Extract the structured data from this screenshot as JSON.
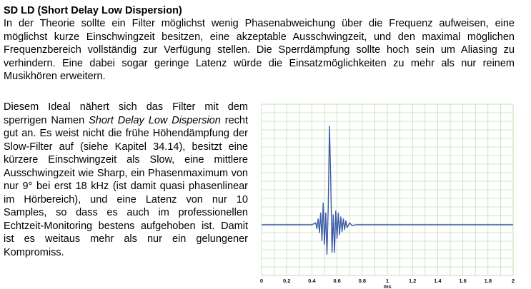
{
  "heading": "SD LD (Short Delay Low Dispersion)",
  "intro": "In der Theorie sollte ein Filter möglichst wenig Phasenabweichung über die Frequenz aufweisen, eine möglichst kurze Einschwingzeit besitzen, eine akzeptable Ausschwingzeit, und den maximal möglichen Frequenzbereich vollständig zur Verfügung stellen. Die Sperrdämpfung sollte hoch sein um Aliasing zu verhindern. Eine dabei sogar geringe Latenz würde die Einsatzmöglichkeiten zu mehr als nur reinem Musikhören erweitern.",
  "body": {
    "p1": "Diesem Ideal nähert sich das Filter mit dem sperrigen Namen ",
    "italic": "Short Delay Low Dispersion",
    "p2": " recht gut an. Es weist nicht die frühe Höhendämpfung der Slow-Filter auf (siehe Kapitel 34.14), besitzt eine kürzere Einschwingzeit als Slow, eine mittlere Ausschwingzeit wie Sharp, ein Phasenmaximum von nur 9° bei erst 18 kHz (ist damit quasi phasenlinear im Hörbereich), und eine Latenz von nur 10 Samples, so dass es auch im professionellen Echtzeit-Monitoring bestens aufgehoben ist. Damit ist es weitaus mehr als nur ein gelungener Kompromiss."
  },
  "chart_data": {
    "type": "line",
    "xlabel": "ms",
    "ylabel": "",
    "xlim": [
      0,
      2
    ],
    "x_ticks": [
      "0",
      "0.2",
      "0.4",
      "0.6",
      "0.8",
      "1",
      "1.2",
      "1.4",
      "1.6",
      "1.8",
      "2"
    ],
    "grid": true,
    "line_color": "#3a5aa8",
    "grid_color": "#bfe0b4",
    "baseline": 0,
    "series": [
      {
        "points": [
          [
            0,
            0
          ],
          [
            0.4,
            0
          ],
          [
            0.43,
            0.02
          ],
          [
            0.44,
            -0.04
          ],
          [
            0.45,
            0.06
          ],
          [
            0.46,
            -0.08
          ],
          [
            0.47,
            0.12
          ],
          [
            0.48,
            -0.16
          ],
          [
            0.49,
            0.22
          ],
          [
            0.5,
            -0.2
          ],
          [
            0.51,
            0.12
          ],
          [
            0.52,
            -0.3
          ],
          [
            0.53,
            0.18
          ],
          [
            0.54,
            1.0
          ],
          [
            0.55,
            0.45
          ],
          [
            0.56,
            -0.28
          ],
          [
            0.57,
            0.1
          ],
          [
            0.58,
            -0.28
          ],
          [
            0.59,
            0.14
          ],
          [
            0.6,
            -0.14
          ],
          [
            0.61,
            0.12
          ],
          [
            0.62,
            -0.1
          ],
          [
            0.63,
            0.08
          ],
          [
            0.64,
            -0.07
          ],
          [
            0.65,
            0.06
          ],
          [
            0.66,
            -0.05
          ],
          [
            0.67,
            0.04
          ],
          [
            0.68,
            -0.03
          ],
          [
            0.7,
            0.02
          ],
          [
            0.72,
            -0.01
          ],
          [
            0.75,
            0
          ],
          [
            2.0,
            0
          ]
        ]
      }
    ]
  }
}
